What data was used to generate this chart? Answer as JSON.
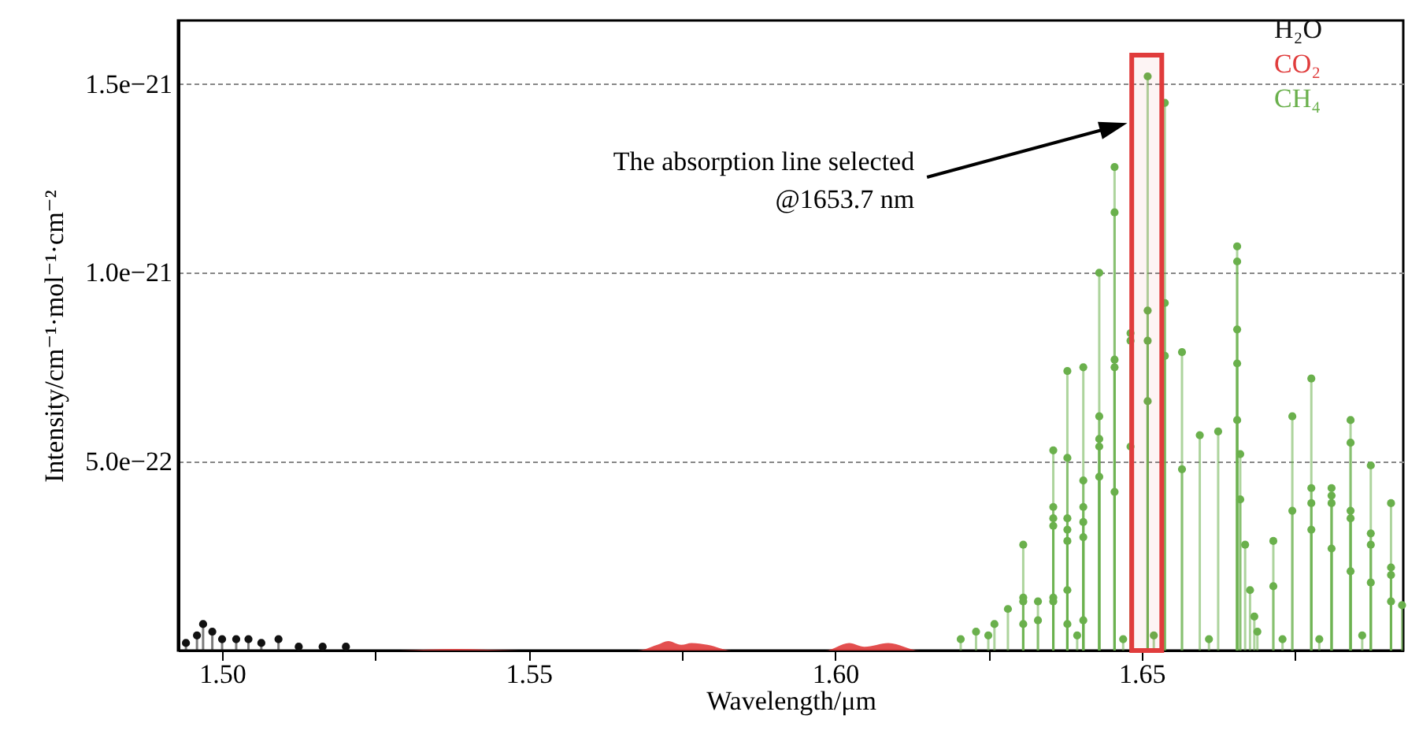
{
  "chart_data": {
    "type": "lollipop",
    "xlabel": "Wavelength/μm",
    "ylabel": "Intensity/cm⁻¹·mol⁻¹·cm⁻²",
    "xlim": [
      1.4928,
      1.6927
    ],
    "xticks": [
      {
        "value": 1.5,
        "label": "1.50"
      },
      {
        "value": 1.525,
        "label": null
      },
      {
        "value": 1.55,
        "label": "1.55"
      },
      {
        "value": 1.575,
        "label": null
      },
      {
        "value": 1.6,
        "label": "1.60"
      },
      {
        "value": 1.625,
        "label": null
      },
      {
        "value": 1.65,
        "label": "1.65"
      },
      {
        "value": 1.675,
        "label": null
      }
    ],
    "ylim": [
      0,
      1.668e-21
    ],
    "yticks": [
      {
        "value": 5e-22,
        "label": "5.0e−22"
      },
      {
        "value": 1e-21,
        "label": "1.0e−21"
      },
      {
        "value": 1.5e-21,
        "label": "1.5e−21"
      }
    ],
    "grid": "y",
    "legend": "top right",
    "marker": "circle",
    "series": [
      {
        "name": "H₂O",
        "color": "#111111",
        "x": [
          1.4941,
          1.4959,
          1.4969,
          1.4984,
          1.5,
          1.5023,
          1.5043,
          1.5064,
          1.5092,
          1.5125,
          1.5164,
          1.5202
        ],
        "values": [
          2e-23,
          4e-23,
          7e-23,
          5e-23,
          3e-23,
          3e-23,
          3e-23,
          2e-23,
          3e-23,
          1e-23,
          1e-23,
          1e-23
        ]
      },
      {
        "name": "CO₂",
        "color": "#e03c3c",
        "type": "area",
        "marker": "none",
        "x": [
          1.4928,
          1.5279,
          1.5382,
          1.5484,
          1.5677,
          1.571,
          1.5728,
          1.5749,
          1.5766,
          1.5792,
          1.5831,
          1.5984,
          1.6023,
          1.6048,
          1.6087,
          1.6138,
          1.6927
        ],
        "values": [
          0,
          0,
          4e-24,
          0,
          0,
          1.5e-23,
          2.5e-23,
          1.5e-23,
          2e-23,
          1.5e-23,
          0,
          0,
          2e-23,
          1e-23,
          2e-23,
          0,
          0
        ]
      },
      {
        "name": "CH₄",
        "color": "#6ab04c",
        "x": [
          1.6205,
          1.623,
          1.625,
          1.626,
          1.6282,
          1.6307,
          1.6307,
          1.6307,
          1.6307,
          1.6331,
          1.6331,
          1.6356,
          1.6356,
          1.6356,
          1.6356,
          1.6356,
          1.6356,
          1.6379,
          1.6379,
          1.6379,
          1.6379,
          1.6379,
          1.6379,
          1.6379,
          1.6395,
          1.6405,
          1.6405,
          1.6405,
          1.6405,
          1.6405,
          1.6405,
          1.6431,
          1.6431,
          1.6431,
          1.6431,
          1.6431,
          1.6456,
          1.6456,
          1.6456,
          1.6456,
          1.6456,
          1.647,
          1.6482,
          1.6482,
          1.6482,
          1.651,
          1.651,
          1.651,
          1.651,
          1.652,
          1.6538,
          1.6538,
          1.6538,
          1.6566,
          1.6566,
          1.6595,
          1.661,
          1.6625,
          1.6656,
          1.6656,
          1.6656,
          1.6656,
          1.6656,
          1.6661,
          1.6661,
          1.6669,
          1.6677,
          1.6684,
          1.6689,
          1.6715,
          1.6715,
          1.673,
          1.6746,
          1.6746,
          1.6777,
          1.6777,
          1.6777,
          1.6777,
          1.679,
          1.681,
          1.681,
          1.681,
          1.681,
          1.6841,
          1.6841,
          1.6841,
          1.6841,
          1.6841,
          1.686,
          1.6874,
          1.6874,
          1.6874,
          1.6874,
          1.6907,
          1.6907,
          1.6907,
          1.6907,
          1.6925
        ],
        "values": [
          3e-23,
          5e-23,
          4e-23,
          7e-23,
          1.1e-22,
          2.8e-22,
          1.4e-22,
          1.3e-22,
          7e-23,
          1.3e-22,
          8e-23,
          5.3e-22,
          3.8e-22,
          3.5e-22,
          3.3e-22,
          1.4e-22,
          1.3e-22,
          7.4e-22,
          5.1e-22,
          3.5e-22,
          3.2e-22,
          2.9e-22,
          1.6e-22,
          7e-23,
          4e-23,
          7.5e-22,
          4.5e-22,
          3.8e-22,
          3.4e-22,
          3e-22,
          8e-23,
          1e-21,
          6.2e-22,
          5.6e-22,
          5.4e-22,
          4.6e-22,
          1.28e-21,
          1.16e-21,
          7.7e-22,
          7.5e-22,
          4.2e-22,
          3e-23,
          8.4e-22,
          8.2e-22,
          5.4e-22,
          1.52e-21,
          9e-22,
          8.2e-22,
          6.6e-22,
          4e-23,
          1.45e-21,
          9.2e-22,
          7.8e-22,
          7.9e-22,
          4.8e-22,
          5.7e-22,
          3e-23,
          5.8e-22,
          1.07e-21,
          1.03e-21,
          8.5e-22,
          7.6e-22,
          6.1e-22,
          5.2e-22,
          4e-22,
          2.8e-22,
          1.6e-22,
          9e-23,
          5e-23,
          2.9e-22,
          1.7e-22,
          3e-23,
          6.2e-22,
          3.7e-22,
          7.2e-22,
          4.3e-22,
          3.9e-22,
          3.2e-22,
          3e-23,
          4.3e-22,
          4.1e-22,
          3.9e-22,
          2.7e-22,
          6.1e-22,
          5.5e-22,
          3.7e-22,
          3.5e-22,
          2.1e-22,
          4e-23,
          4.9e-22,
          3.1e-22,
          2.8e-22,
          1.8e-22,
          3.9e-22,
          2.2e-22,
          2e-22,
          1.3e-22,
          1.2e-22
        ]
      }
    ],
    "bands": [
      {
        "axis": "x",
        "from": 1.6484,
        "to": 1.6533,
        "color": "#e03c3c"
      }
    ],
    "annotations": [
      "The absorption line selected\n@1653.7 nm"
    ]
  }
}
